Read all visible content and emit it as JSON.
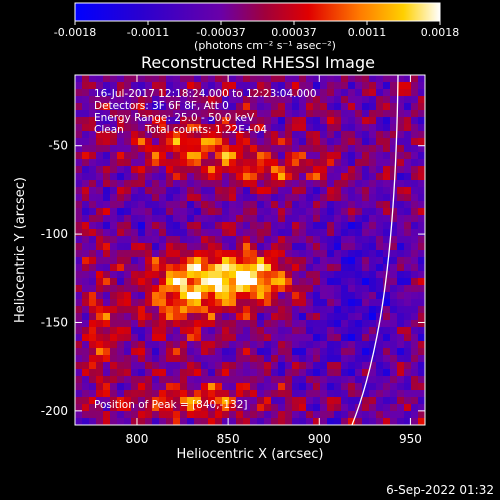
{
  "colorbar": {
    "ticks": [
      "-0.0018",
      "-0.0011",
      "-0.00037",
      "0.00037",
      "0.0011",
      "0.0018"
    ],
    "units": "(photons cm⁻² s⁻¹ asec⁻²)",
    "range": [
      -0.0018,
      0.0018
    ]
  },
  "title": "Reconstructed RHESSI Image",
  "info": {
    "line1": "16-Jul-2017 12:18:24.000 to 12:23:04.000",
    "line2": "Detectors: 3F 6F 8F, Att 0",
    "line3": "Energy Range: 25.0 - 50.0 keV",
    "line4_a": "Clean",
    "line4_b": "Total counts: 1.22E+04"
  },
  "peak_label": "Position of Peak = [840,-132]",
  "axes": {
    "xlabel": "Heliocentric X (arcsec)",
    "ylabel": "Heliocentric Y (arcsec)",
    "xticks": [
      800,
      850,
      900,
      950
    ],
    "yticks": [
      -50,
      -100,
      -150,
      -200
    ],
    "xlim": [
      766,
      958
    ],
    "ylim": [
      -208,
      -10
    ]
  },
  "timestamp": "6-Sep-2022 01:32",
  "colors": {
    "background": "#000000",
    "limb": "#ffffff",
    "colormap": [
      "#0000ff",
      "#3a00c8",
      "#6a00a8",
      "#a0003c",
      "#e00000",
      "#ff7a00",
      "#ffd000",
      "#ffffff"
    ]
  }
}
